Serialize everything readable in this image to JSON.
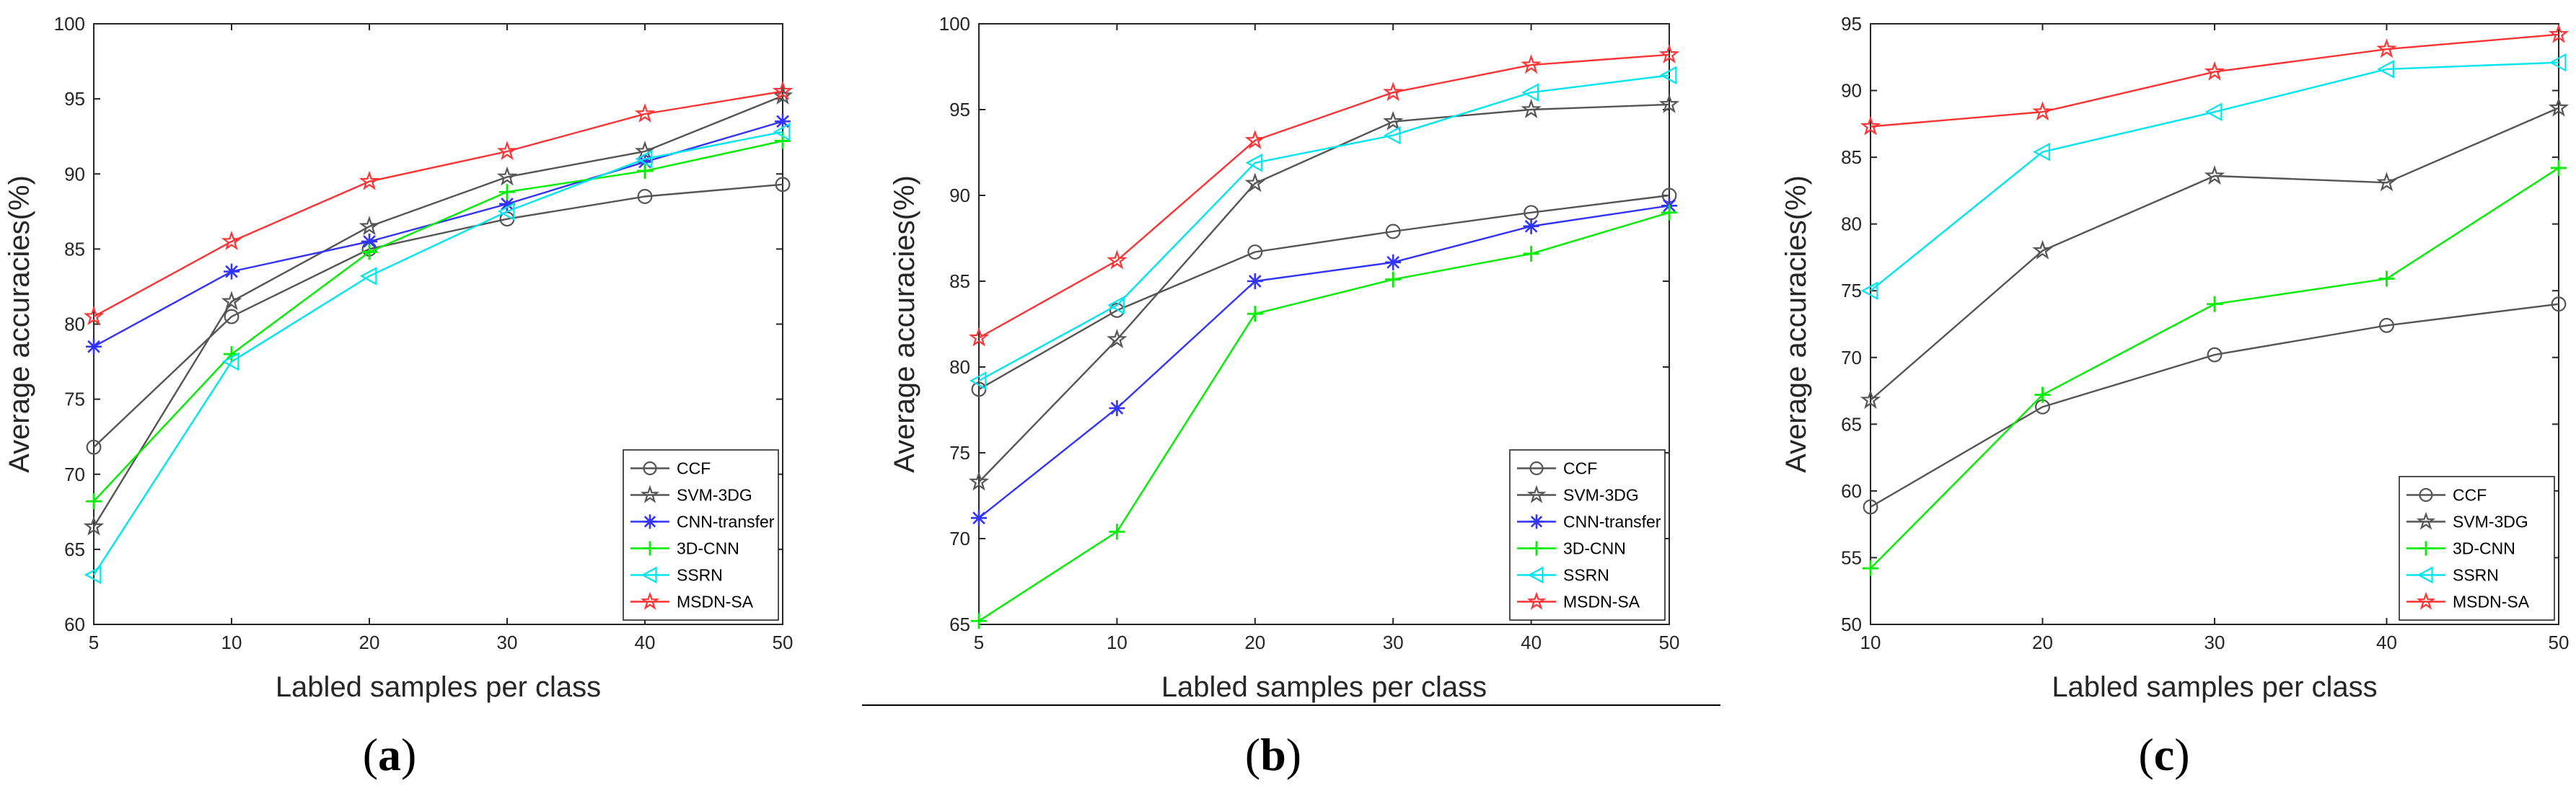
{
  "chart_data": [
    {
      "type": "line",
      "caption_open": "(",
      "caption_letter": "a",
      "caption_close": ")",
      "xlabel": "Labled samples per class",
      "ylabel": "Average accuracies(%)",
      "x": [
        5,
        10,
        20,
        30,
        40,
        50
      ],
      "xticks": [
        "5",
        "10",
        "20",
        "30",
        "40",
        "50"
      ],
      "ylim": [
        60,
        100
      ],
      "yticks": [
        "60",
        "65",
        "70",
        "75",
        "80",
        "85",
        "90",
        "95",
        "100"
      ],
      "grid": false,
      "legend_position": "lower-right",
      "series": [
        {
          "name": "CCF",
          "marker": "circle",
          "color": "#555555",
          "values": [
            71.8,
            80.5,
            85.0,
            87.0,
            88.5,
            89.3
          ]
        },
        {
          "name": "SVM-3DG",
          "marker": "star",
          "color": "#555555",
          "values": [
            66.5,
            81.5,
            86.5,
            89.8,
            91.5,
            95.2
          ]
        },
        {
          "name": "CNN-transfer",
          "marker": "asterisk",
          "color": "#3333ff",
          "values": [
            78.5,
            83.5,
            85.5,
            88.0,
            90.8,
            93.5
          ]
        },
        {
          "name": "3D-CNN",
          "marker": "plus",
          "color": "#00ee00",
          "values": [
            68.2,
            78.0,
            84.8,
            88.8,
            90.2,
            92.2
          ]
        },
        {
          "name": "SSRN",
          "marker": "triangle-left",
          "color": "#00e5ee",
          "values": [
            63.3,
            77.5,
            83.2,
            87.5,
            91.0,
            92.8
          ]
        },
        {
          "name": "MSDN-SA",
          "marker": "star",
          "color": "#ff3333",
          "values": [
            80.5,
            85.5,
            89.5,
            91.5,
            94.0,
            95.5
          ]
        }
      ]
    },
    {
      "type": "line",
      "caption_open": "(",
      "caption_letter": "b",
      "caption_close": ")",
      "xlabel": "Labled samples per class",
      "ylabel": "Average accuracies(%)",
      "x": [
        5,
        10,
        20,
        30,
        40,
        50
      ],
      "xticks": [
        "5",
        "10",
        "20",
        "30",
        "40",
        "50"
      ],
      "ylim": [
        65,
        100
      ],
      "yticks": [
        "65",
        "70",
        "75",
        "80",
        "85",
        "90",
        "95",
        "100"
      ],
      "grid": false,
      "legend_position": "lower-right",
      "series": [
        {
          "name": "CCF",
          "marker": "circle",
          "color": "#555555",
          "values": [
            78.7,
            83.3,
            86.7,
            87.9,
            89.0,
            90.0
          ]
        },
        {
          "name": "SVM-3DG",
          "marker": "star",
          "color": "#555555",
          "values": [
            73.3,
            81.6,
            90.7,
            94.3,
            95.0,
            95.3
          ]
        },
        {
          "name": "CNN-transfer",
          "marker": "asterisk",
          "color": "#3333ff",
          "values": [
            71.2,
            77.6,
            85.0,
            86.1,
            88.2,
            89.4
          ]
        },
        {
          "name": "3D-CNN",
          "marker": "plus",
          "color": "#00ee00",
          "values": [
            65.2,
            70.4,
            83.1,
            85.1,
            86.6,
            89.0
          ]
        },
        {
          "name": "SSRN",
          "marker": "triangle-left",
          "color": "#00e5ee",
          "values": [
            79.2,
            83.6,
            91.9,
            93.5,
            96.0,
            97.0
          ]
        },
        {
          "name": "MSDN-SA",
          "marker": "star",
          "color": "#ff3333",
          "values": [
            81.7,
            86.2,
            93.2,
            96.0,
            97.6,
            98.2
          ]
        }
      ]
    },
    {
      "type": "line",
      "caption_open": "(",
      "caption_letter": "c",
      "caption_close": ")",
      "xlabel": "Labled samples per class",
      "ylabel": "Average accuracies(%)",
      "x": [
        10,
        20,
        30,
        40,
        50
      ],
      "xticks": [
        "10",
        "20",
        "30",
        "40",
        "50"
      ],
      "ylim": [
        50,
        95
      ],
      "yticks": [
        "50",
        "55",
        "60",
        "65",
        "70",
        "75",
        "80",
        "85",
        "90",
        "95"
      ],
      "grid": false,
      "legend_position": "lower-right",
      "series": [
        {
          "name": "CCF",
          "marker": "circle",
          "color": "#555555",
          "values": [
            58.8,
            66.3,
            70.2,
            72.4,
            74.0
          ]
        },
        {
          "name": "SVM-3DG",
          "marker": "star",
          "color": "#555555",
          "values": [
            66.8,
            78.0,
            83.6,
            83.1,
            88.7
          ]
        },
        {
          "name": "3D-CNN",
          "marker": "plus",
          "color": "#00ee00",
          "values": [
            54.2,
            67.2,
            74.0,
            75.9,
            84.2
          ]
        },
        {
          "name": "SSRN",
          "marker": "triangle-left",
          "color": "#00e5ee",
          "values": [
            75.0,
            85.4,
            88.4,
            91.6,
            92.1
          ]
        },
        {
          "name": "MSDN-SA",
          "marker": "star",
          "color": "#ff3333",
          "values": [
            87.3,
            88.4,
            91.4,
            93.1,
            94.2
          ]
        }
      ]
    }
  ]
}
